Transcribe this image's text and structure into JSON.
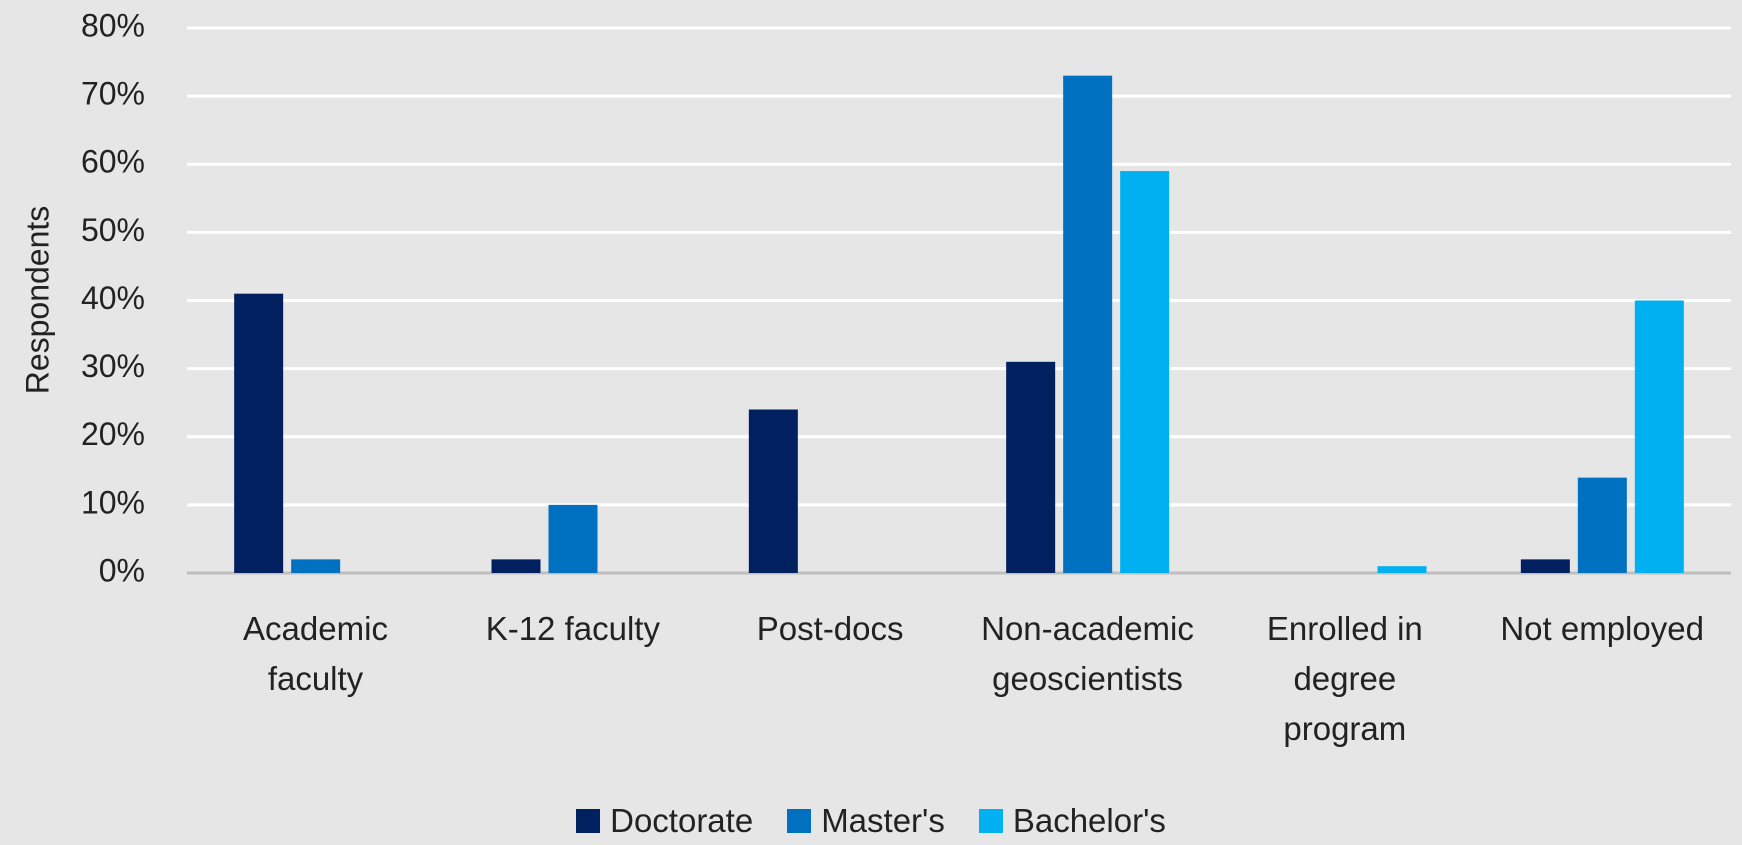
{
  "chart_data": {
    "type": "bar",
    "y_label": "Respondents",
    "categories": [
      "Academic\nfaculty",
      "K-12 faculty",
      "Post-docs",
      "Non-academic\ngeoscientists",
      "Enrolled in\ndegree\nprogram",
      "Not employed"
    ],
    "series": [
      {
        "name": "Doctorate",
        "color": "#002060",
        "values": [
          41,
          2,
          24,
          31,
          0,
          2
        ]
      },
      {
        "name": "Master's",
        "color": "#0070c0",
        "values": [
          2,
          10,
          0,
          73,
          0,
          14
        ]
      },
      {
        "name": "Bachelor's",
        "color": "#00b0f0",
        "values": [
          0,
          0,
          0,
          59,
          1,
          40
        ]
      }
    ],
    "ylim": [
      0,
      80
    ],
    "yticks": [
      {
        "value": 0,
        "label": "0%"
      },
      {
        "value": 10,
        "label": "10%"
      },
      {
        "value": 20,
        "label": "20%"
      },
      {
        "value": 30,
        "label": "30%"
      },
      {
        "value": 40,
        "label": "40%"
      },
      {
        "value": 50,
        "label": "50%"
      },
      {
        "value": 60,
        "label": "60%"
      },
      {
        "value": 70,
        "label": "70%"
      },
      {
        "value": 80,
        "label": "80%"
      }
    ],
    "grid": true
  }
}
